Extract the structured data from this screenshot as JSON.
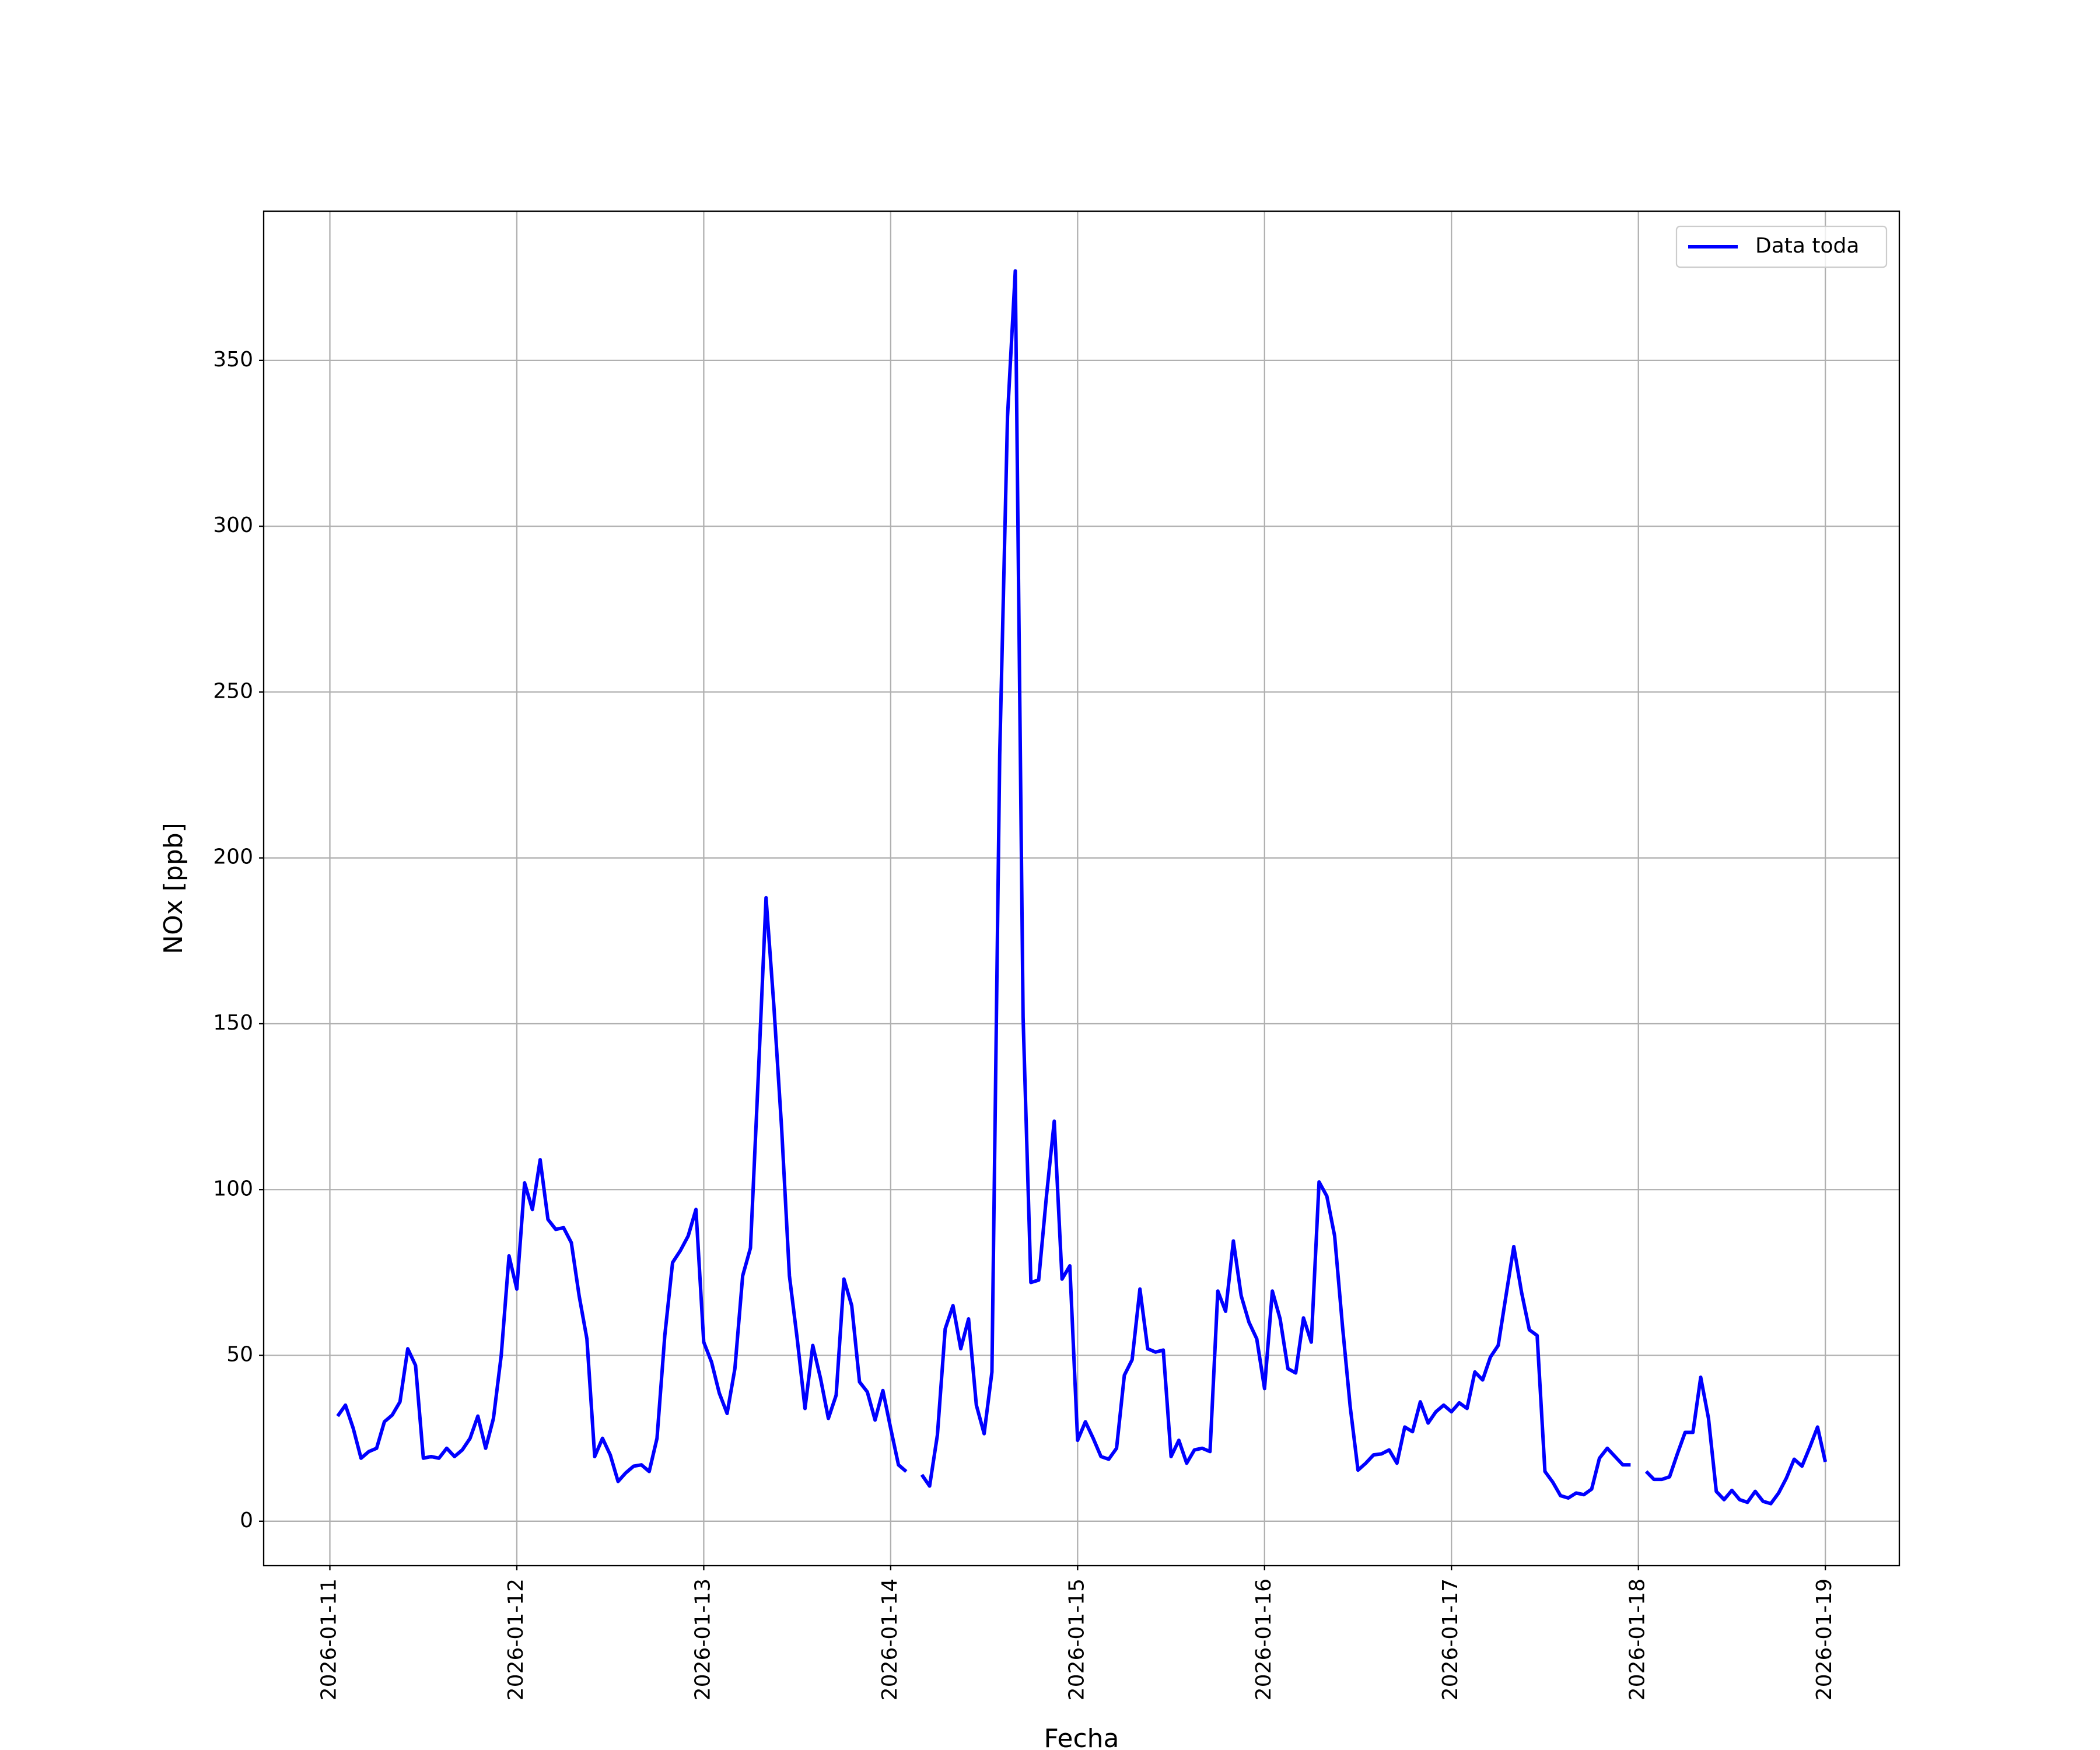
{
  "chart_data": {
    "type": "line",
    "xlabel": "Fecha",
    "ylabel": "NOx [ppb]",
    "x": [
      "2026-01-11 01:00",
      "2026-01-11 02:00",
      "2026-01-11 03:00",
      "2026-01-11 04:00",
      "2026-01-11 05:00",
      "2026-01-11 06:00",
      "2026-01-11 07:00",
      "2026-01-11 08:00",
      "2026-01-11 09:00",
      "2026-01-11 10:00",
      "2026-01-11 11:00",
      "2026-01-11 12:00",
      "2026-01-11 13:00",
      "2026-01-11 14:00",
      "2026-01-11 15:00",
      "2026-01-11 16:00",
      "2026-01-11 17:00",
      "2026-01-11 18:00",
      "2026-01-11 19:00",
      "2026-01-11 20:00",
      "2026-01-11 21:00",
      "2026-01-11 22:00",
      "2026-01-11 23:00",
      "2026-01-12 00:00",
      "2026-01-12 01:00",
      "2026-01-12 02:00",
      "2026-01-12 03:00",
      "2026-01-12 04:00",
      "2026-01-12 05:00",
      "2026-01-12 06:00",
      "2026-01-12 07:00",
      "2026-01-12 08:00",
      "2026-01-12 09:00",
      "2026-01-12 10:00",
      "2026-01-12 11:00",
      "2026-01-12 12:00",
      "2026-01-12 13:00",
      "2026-01-12 14:00",
      "2026-01-12 15:00",
      "2026-01-12 16:00",
      "2026-01-12 17:00",
      "2026-01-12 18:00",
      "2026-01-12 19:00",
      "2026-01-12 20:00",
      "2026-01-12 21:00",
      "2026-01-12 22:00",
      "2026-01-12 23:00",
      "2026-01-13 00:00",
      "2026-01-13 01:00",
      "2026-01-13 02:00",
      "2026-01-13 03:00",
      "2026-01-13 04:00",
      "2026-01-13 05:00",
      "2026-01-13 06:00",
      "2026-01-13 07:00",
      "2026-01-13 08:00",
      "2026-01-13 09:00",
      "2026-01-13 10:00",
      "2026-01-13 11:00",
      "2026-01-13 12:00",
      "2026-01-13 13:00",
      "2026-01-13 14:00",
      "2026-01-13 15:00",
      "2026-01-13 16:00",
      "2026-01-13 17:00",
      "2026-01-13 18:00",
      "2026-01-13 19:00",
      "2026-01-13 20:00",
      "2026-01-13 21:00",
      "2026-01-13 22:00",
      "2026-01-13 23:00",
      "2026-01-14 00:00",
      "2026-01-14 01:00",
      "2026-01-14 02:00",
      "2026-01-14 03:00",
      "2026-01-14 04:00",
      "2026-01-14 05:00",
      "2026-01-14 06:00",
      "2026-01-14 07:00",
      "2026-01-14 08:00",
      "2026-01-14 09:00",
      "2026-01-14 10:00",
      "2026-01-14 11:00",
      "2026-01-14 12:00",
      "2026-01-14 13:00",
      "2026-01-14 14:00",
      "2026-01-14 15:00",
      "2026-01-14 16:00",
      "2026-01-14 17:00",
      "2026-01-14 18:00",
      "2026-01-14 19:00",
      "2026-01-14 20:00",
      "2026-01-14 21:00",
      "2026-01-14 22:00",
      "2026-01-14 23:00",
      "2026-01-15 00:00",
      "2026-01-15 01:00",
      "2026-01-15 02:00",
      "2026-01-15 03:00",
      "2026-01-15 04:00",
      "2026-01-15 05:00",
      "2026-01-15 06:00",
      "2026-01-15 07:00",
      "2026-01-15 08:00",
      "2026-01-15 09:00",
      "2026-01-15 10:00",
      "2026-01-15 11:00",
      "2026-01-15 12:00",
      "2026-01-15 13:00",
      "2026-01-15 14:00",
      "2026-01-15 15:00",
      "2026-01-15 16:00",
      "2026-01-15 17:00",
      "2026-01-15 18:00",
      "2026-01-15 19:00",
      "2026-01-15 20:00",
      "2026-01-15 21:00",
      "2026-01-15 22:00",
      "2026-01-15 23:00",
      "2026-01-16 00:00",
      "2026-01-16 01:00",
      "2026-01-16 02:00",
      "2026-01-16 03:00",
      "2026-01-16 04:00",
      "2026-01-16 05:00",
      "2026-01-16 06:00",
      "2026-01-16 07:00",
      "2026-01-16 08:00",
      "2026-01-16 09:00",
      "2026-01-16 10:00",
      "2026-01-16 11:00",
      "2026-01-16 12:00",
      "2026-01-16 13:00",
      "2026-01-16 14:00",
      "2026-01-16 15:00",
      "2026-01-16 16:00",
      "2026-01-16 17:00",
      "2026-01-16 18:00",
      "2026-01-16 19:00",
      "2026-01-16 20:00",
      "2026-01-16 21:00",
      "2026-01-16 22:00",
      "2026-01-16 23:00",
      "2026-01-17 00:00",
      "2026-01-17 01:00",
      "2026-01-17 02:00",
      "2026-01-17 03:00",
      "2026-01-17 04:00",
      "2026-01-17 05:00",
      "2026-01-17 06:00",
      "2026-01-17 07:00",
      "2026-01-17 08:00",
      "2026-01-17 09:00",
      "2026-01-17 10:00",
      "2026-01-17 11:00",
      "2026-01-17 12:00",
      "2026-01-17 13:00",
      "2026-01-17 14:00",
      "2026-01-17 15:00",
      "2026-01-17 16:00",
      "2026-01-17 17:00",
      "2026-01-17 18:00",
      "2026-01-17 19:00",
      "2026-01-17 20:00",
      "2026-01-17 21:00",
      "2026-01-17 22:00",
      "2026-01-17 23:00",
      "2026-01-18 00:00",
      "2026-01-18 01:00",
      "2026-01-18 02:00",
      "2026-01-18 03:00",
      "2026-01-18 04:00",
      "2026-01-18 05:00",
      "2026-01-18 06:00",
      "2026-01-18 07:00",
      "2026-01-18 08:00",
      "2026-01-18 09:00",
      "2026-01-18 10:00",
      "2026-01-18 11:00",
      "2026-01-18 12:00",
      "2026-01-18 13:00",
      "2026-01-18 14:00",
      "2026-01-18 15:00",
      "2026-01-18 16:00",
      "2026-01-18 17:00",
      "2026-01-18 18:00",
      "2026-01-18 19:00",
      "2026-01-18 20:00",
      "2026-01-18 21:00",
      "2026-01-18 22:00",
      "2026-01-18 23:00",
      "2026-01-19 00:00"
    ],
    "series": [
      {
        "name": "Data toda",
        "color": "#0000ff",
        "values": [
          31.7,
          35,
          28,
          19,
          21,
          22,
          30,
          32,
          36,
          52,
          47,
          19,
          19.5,
          19,
          22,
          19.5,
          21.5,
          25,
          31.7,
          22,
          31,
          50,
          80,
          70,
          102,
          94,
          109,
          91,
          88,
          88.5,
          84,
          68,
          55,
          19.5,
          25,
          20,
          12,
          14.6,
          16.6,
          17,
          15,
          25,
          56,
          78,
          81.6,
          86,
          94,
          54,
          48,
          38.6,
          32.5,
          46,
          74,
          82.4,
          134,
          188,
          155.5,
          118.5,
          74,
          55,
          34,
          53,
          43,
          31,
          38,
          73,
          65,
          42,
          39,
          30.5,
          39.4,
          28,
          17,
          15,
          null,
          14,
          10.6,
          26,
          58,
          65,
          52,
          61,
          35,
          26.4,
          45,
          231,
          333,
          377,
          152,
          72,
          72.7,
          98,
          120.6,
          73,
          77,
          24.4,
          30,
          25,
          19.5,
          18.7,
          22,
          44,
          48.7,
          70,
          52,
          51,
          51.6,
          19.5,
          24.4,
          17.5,
          21.5,
          22,
          21,
          69.4,
          63.3,
          84.5,
          68,
          60,
          55,
          40,
          69.4,
          61,
          46,
          44.7,
          61.3,
          54,
          102.3,
          98,
          86,
          59,
          34.5,
          15.4,
          17.5,
          20,
          20.3,
          21.5,
          17.5,
          28.4,
          27,
          36,
          29.6,
          33,
          35,
          33,
          35.7,
          34,
          45,
          42.6,
          49.5,
          53,
          68,
          82.8,
          69,
          57.7,
          56,
          15,
          11.8,
          7.7,
          7,
          8.5,
          8,
          9.7,
          19,
          22,
          19.5,
          17,
          17,
          null,
          15,
          12.6,
          12.6,
          13.4,
          20.3,
          26.8,
          26.8,
          43.4,
          31,
          9,
          6.5,
          9.3,
          6.5,
          5.7,
          9,
          6,
          5.3,
          8.5,
          13,
          18.7,
          16.6,
          22.3,
          28.4,
          17.9
        ]
      }
    ],
    "xlim": [
      "2026-01-10 15:30",
      "2026-01-19 09:30"
    ],
    "xticks": [
      "2026-01-11",
      "2026-01-12",
      "2026-01-13",
      "2026-01-14",
      "2026-01-15",
      "2026-01-16",
      "2026-01-17",
      "2026-01-18",
      "2026-01-19"
    ],
    "ylim": [
      -13.4,
      395
    ],
    "yticks": [
      0,
      50,
      100,
      150,
      200,
      250,
      300,
      350
    ],
    "grid": true,
    "legend": "upper right"
  }
}
